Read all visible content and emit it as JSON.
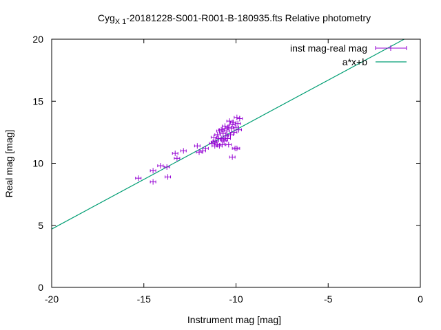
{
  "chart_data": {
    "type": "scatter",
    "title_main": "Cyg",
    "title_sub": "X 1",
    "title_rest": "-20181228-S001-R001-B-180935.fts Relative photometry",
    "xlabel": "Instrument mag [mag]",
    "ylabel": "Real mag [mag]",
    "xlim": [
      -20,
      0
    ],
    "ylim": [
      0,
      20
    ],
    "xticks": [
      -20,
      -15,
      -10,
      -5,
      0
    ],
    "yticks": [
      0,
      5,
      10,
      15,
      20
    ],
    "grid": false,
    "legend_position": "top-right",
    "series": [
      {
        "name": "inst mag-real mag",
        "kind": "points-errorbars",
        "color": "#9400d3",
        "points": [
          [
            -15.3,
            8.8
          ],
          [
            -14.5,
            8.5
          ],
          [
            -14.5,
            9.4
          ],
          [
            -14.1,
            9.8
          ],
          [
            -13.75,
            9.7
          ],
          [
            -13.7,
            8.9
          ],
          [
            -13.3,
            10.8
          ],
          [
            -13.2,
            10.4
          ],
          [
            -12.85,
            11.0
          ],
          [
            -12.1,
            11.4
          ],
          [
            -12.0,
            10.9
          ],
          [
            -11.8,
            11.0
          ],
          [
            -11.65,
            11.2
          ],
          [
            -11.3,
            11.6
          ],
          [
            -11.2,
            12.1
          ],
          [
            -11.15,
            11.4
          ],
          [
            -11.1,
            11.8
          ],
          [
            -11.0,
            12.3
          ],
          [
            -11.0,
            11.5
          ],
          [
            -10.9,
            11.4
          ],
          [
            -10.9,
            12.6
          ],
          [
            -10.8,
            12.0
          ],
          [
            -10.8,
            12.7
          ],
          [
            -10.75,
            11.5
          ],
          [
            -10.7,
            11.9
          ],
          [
            -10.7,
            12.4
          ],
          [
            -10.6,
            12.8
          ],
          [
            -10.6,
            13.0
          ],
          [
            -10.55,
            12.2
          ],
          [
            -10.5,
            12.6
          ],
          [
            -10.45,
            12.0
          ],
          [
            -10.4,
            11.5
          ],
          [
            -10.4,
            12.9
          ],
          [
            -10.35,
            13.4
          ],
          [
            -10.3,
            12.3
          ],
          [
            -10.25,
            12.8
          ],
          [
            -10.2,
            13.1
          ],
          [
            -10.2,
            10.5
          ],
          [
            -10.15,
            13.3
          ],
          [
            -10.1,
            12.5
          ],
          [
            -10.05,
            11.2
          ],
          [
            -10.0,
            12.9
          ],
          [
            -9.95,
            13.7
          ],
          [
            -9.95,
            11.2
          ],
          [
            -9.9,
            13.2
          ],
          [
            -9.85,
            12.7
          ],
          [
            -9.8,
            13.6
          ],
          [
            -11.2,
            11.7
          ],
          [
            -10.95,
            12.0
          ],
          [
            -10.65,
            11.8
          ]
        ]
      },
      {
        "name": "a*x+b",
        "kind": "line",
        "color": "#009e73",
        "slope": 0.8,
        "intercept": 20.7
      }
    ]
  }
}
